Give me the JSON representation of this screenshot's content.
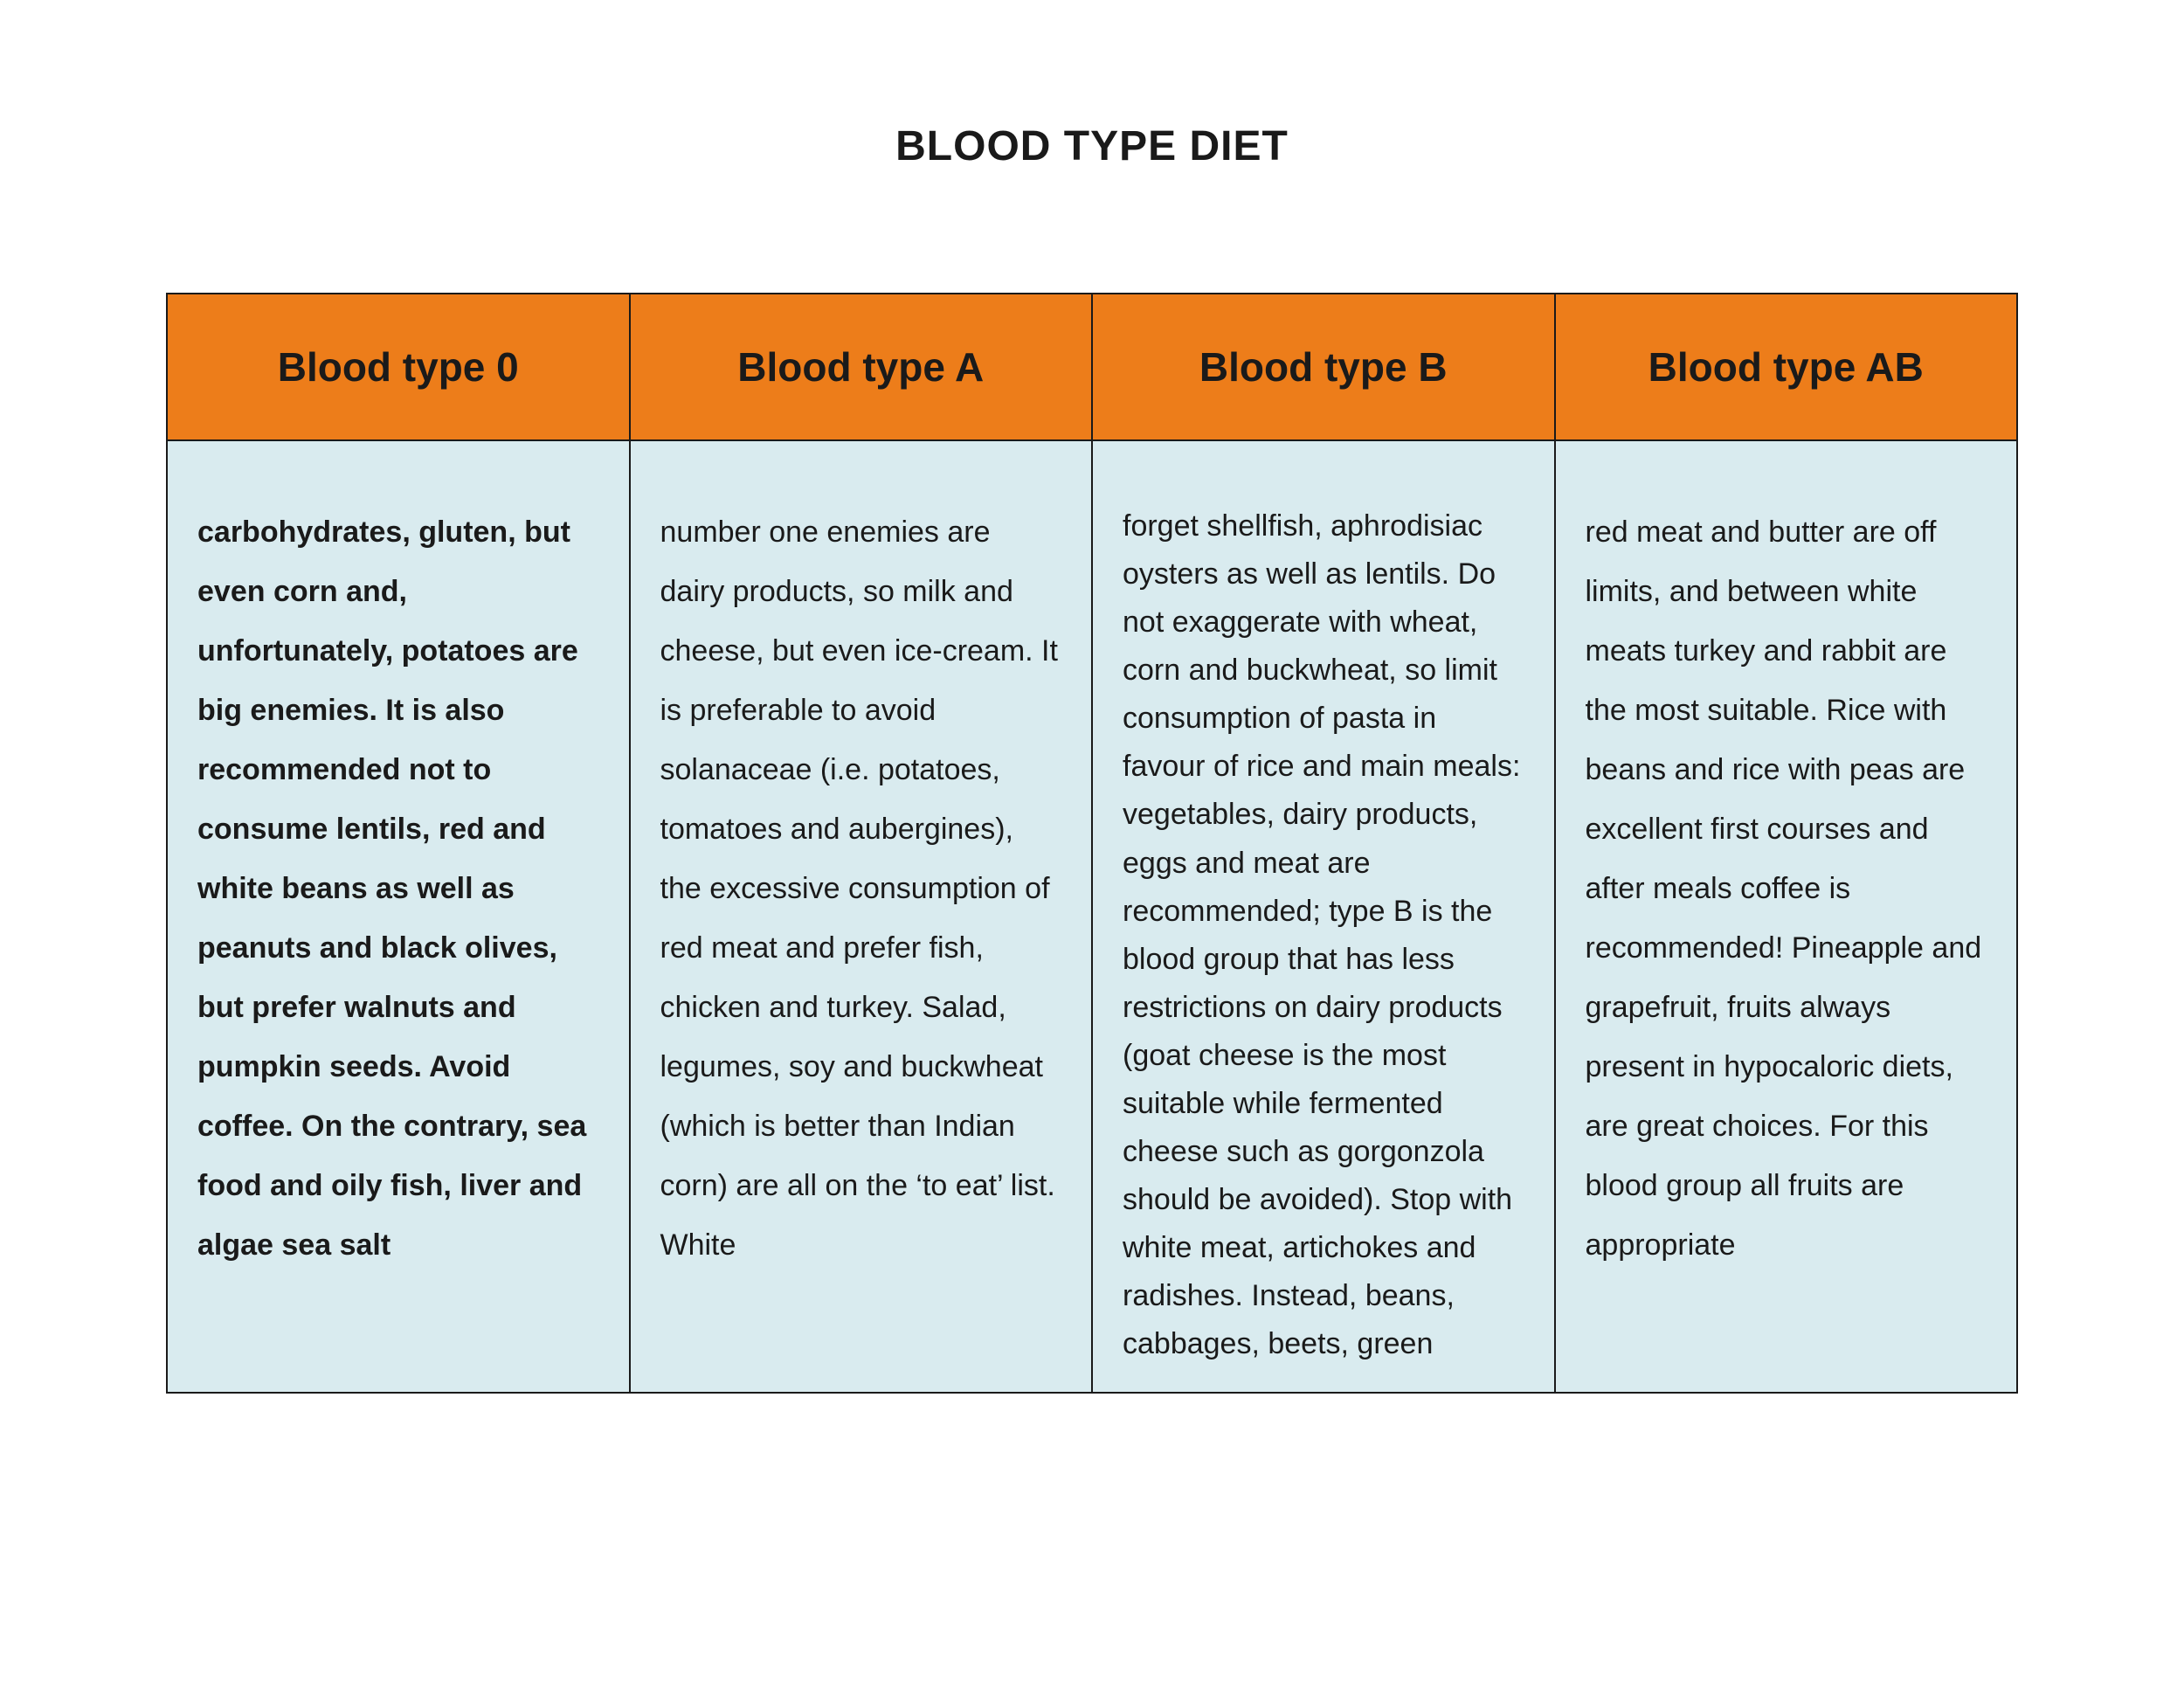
{
  "title": "BLOOD TYPE DIET",
  "table": {
    "header_bg": "#ed7d1a",
    "cell_bg": "#d9ebef",
    "border_color": "#1a1a1a",
    "columns": [
      {
        "label": "Blood type 0"
      },
      {
        "label": "Blood type A"
      },
      {
        "label": "Blood type B"
      },
      {
        "label": "Blood type AB"
      }
    ],
    "rows": [
      {
        "cells": [
          {
            "text": "carbohydrates, gluten, but even corn and, unfortunately, potatoes are big enemies. It is also recommended not to consume lentils, red and white beans as well as peanuts and black olives, but prefer walnuts and pumpkin seeds. Avoid coffee. On the contrary, sea food and oily fish, liver and algae sea salt",
            "bold": true,
            "tight": false
          },
          {
            "text": "number one enemies are dairy products, so milk and cheese, but even ice-cream. It is preferable to avoid solanaceae (i.e. potatoes, tomatoes and aubergines), the excessive consumption of red meat and prefer fish, chicken and turkey. Salad, legumes, soy and buckwheat (which is better than Indian corn) are all on the ‘to eat’ list. White",
            "bold": false,
            "tight": false
          },
          {
            "text": "forget shellfish, aphrodisiac oysters as well as lentils. Do not exaggerate with wheat, corn and buckwheat, so limit consumption of pasta in favour of rice and main meals: vegetables, dairy products, eggs and meat are recommended; type B is the blood group that has less restrictions on dairy products (goat cheese is the most suitable while fermented cheese such as gorgonzola should be avoided). Stop with white meat, artichokes and radishes. Instead, beans, cabbages, beets, green",
            "bold": false,
            "tight": true
          },
          {
            "text": "red meat and butter are off limits, and between white meats turkey and rabbit are the most suitable. Rice with beans and rice with peas are excellent first courses and after meals coffee is recommended! Pineapple and grapefruit, fruits always present in hypocaloric diets, are great choices. For this blood group all fruits are appropriate",
            "bold": false,
            "tight": false
          }
        ]
      }
    ]
  }
}
